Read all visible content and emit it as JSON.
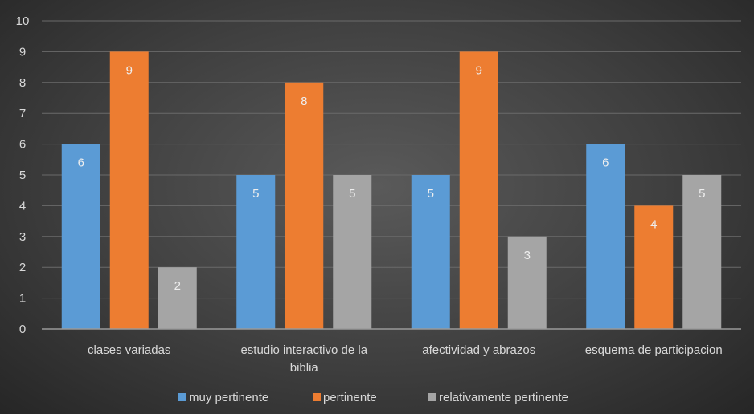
{
  "chart_data": {
    "type": "bar",
    "title": "",
    "xlabel": "",
    "ylabel": "",
    "ylim": [
      0,
      10
    ],
    "yticks": [
      0,
      1,
      2,
      3,
      4,
      5,
      6,
      7,
      8,
      9,
      10
    ],
    "grid": true,
    "legend_position": "bottom",
    "categories": [
      [
        "clases variadas"
      ],
      [
        "estudio interactivo de la",
        "biblia"
      ],
      [
        "afectividad y abrazos"
      ],
      [
        "esquema de participacion"
      ]
    ],
    "series": [
      {
        "name": "muy pertinente",
        "color": "#5b9bd5",
        "values": [
          6,
          5,
          5,
          6
        ]
      },
      {
        "name": "pertinente",
        "color": "#ed7d31",
        "values": [
          9,
          8,
          9,
          4
        ]
      },
      {
        "name": "relativamente pertinente",
        "color": "#a5a5a5",
        "values": [
          2,
          5,
          3,
          5
        ]
      }
    ]
  }
}
